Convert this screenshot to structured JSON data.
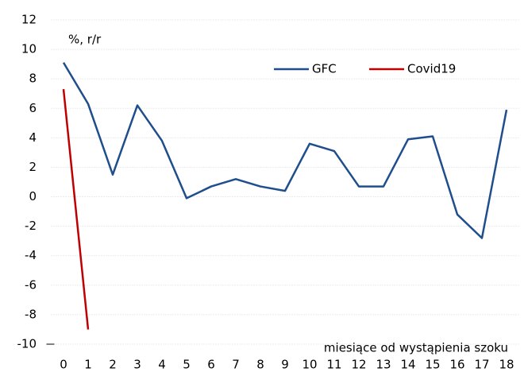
{
  "chart_data": {
    "type": "line",
    "annotations": [
      "%, r/r",
      "miesiące od wystąpienia szoku"
    ],
    "x": [
      0,
      1,
      2,
      3,
      4,
      5,
      6,
      7,
      8,
      9,
      10,
      11,
      12,
      13,
      14,
      15,
      16,
      17,
      18
    ],
    "series": [
      {
        "name": "GFC",
        "color": "#1f4e8c",
        "values": [
          9.1,
          6.3,
          1.5,
          6.2,
          3.8,
          -0.1,
          0.7,
          1.2,
          0.7,
          0.4,
          3.6,
          3.1,
          0.7,
          0.7,
          3.9,
          4.1,
          -1.2,
          -2.8,
          5.9
        ]
      },
      {
        "name": "Covid19",
        "color": "#c00000",
        "values": [
          7.3,
          -9.0,
          null,
          null,
          null,
          null,
          null,
          null,
          null,
          null,
          null,
          null,
          null,
          null,
          null,
          null,
          null,
          null,
          null
        ]
      }
    ],
    "xlim": [
      -0.5,
      18.5
    ],
    "xticks": [
      0,
      1,
      2,
      3,
      4,
      5,
      6,
      7,
      8,
      9,
      10,
      11,
      12,
      13,
      14,
      15,
      16,
      17,
      18
    ],
    "ylim": [
      -10,
      12
    ],
    "yticks": [
      -10,
      -8,
      -6,
      -4,
      -2,
      0,
      2,
      4,
      6,
      8,
      10,
      12
    ],
    "grid": true,
    "legend": "top-right"
  }
}
